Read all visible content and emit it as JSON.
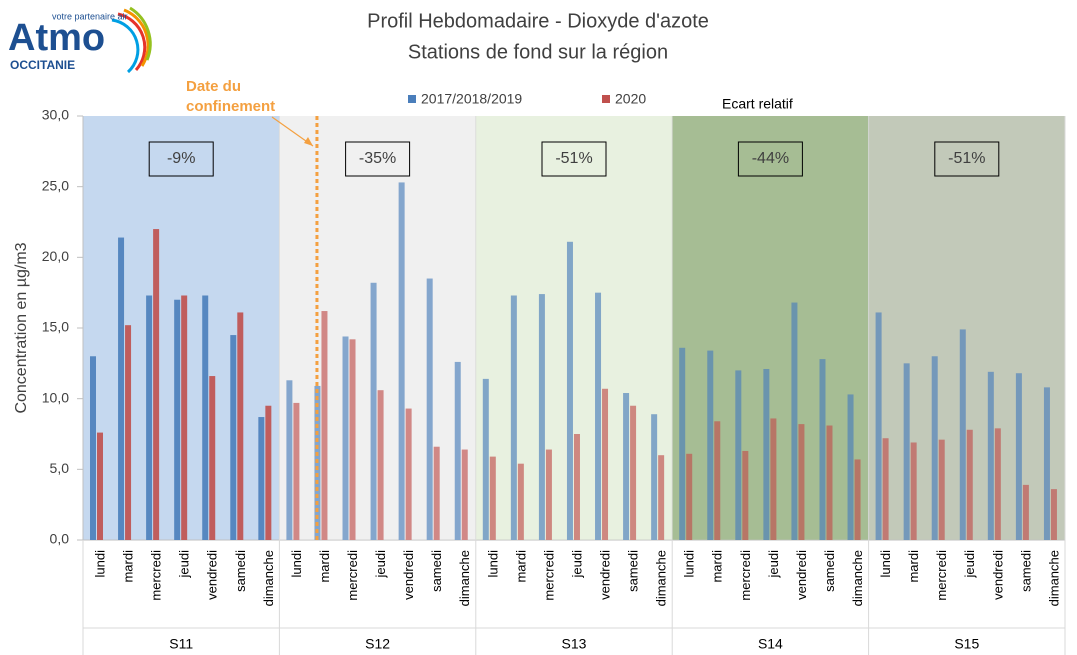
{
  "logo": {
    "name": "Atmo",
    "tagline": "votre partenaire air",
    "region": "OCCITANIE"
  },
  "chart_data": {
    "type": "bar",
    "title": [
      "Profil Hebdomadaire - Dioxyde d'azote",
      "Stations de fond sur la région"
    ],
    "y_label": "Concentration en µg/m3",
    "annotation": [
      "Date du",
      "confinement"
    ],
    "change_label": "Ecart relatif",
    "groups": [
      {
        "name": "S11",
        "change": "-9%",
        "color": "#c6d9f0",
        "categories": [
          "lundi",
          "mardi",
          "mercredi",
          "jeudi",
          "vendredi",
          "samedi",
          "dimanche"
        ]
      },
      {
        "name": "S12",
        "change": "-35%",
        "color": "#f0f0f0",
        "categories": [
          "lundi",
          "mardi",
          "mercredi",
          "jeudi",
          "vendredi",
          "samedi",
          "dimanche"
        ]
      },
      {
        "name": "S13",
        "change": "-51%",
        "color": "#e8f2e0",
        "categories": [
          "lundi",
          "mardi",
          "mercredi",
          "jeudi",
          "vendredi",
          "samedi",
          "dimanche"
        ]
      },
      {
        "name": "S14",
        "change": "-44%",
        "color": "#a7bd94",
        "categories": [
          "lundi",
          "mardi",
          "mercredi",
          "jeudi",
          "vendredi",
          "samedi",
          "dimanche"
        ]
      },
      {
        "name": "S15",
        "change": "-51%",
        "color": "#c2c9b9",
        "categories": [
          "lundi",
          "mardi",
          "mercredi",
          "jeudi",
          "vendredi",
          "samedi",
          "dimanche"
        ]
      }
    ],
    "series": [
      {
        "name": "2017/2018/2019",
        "color": "#4a7ebb",
        "values": [
          13.0,
          21.4,
          17.3,
          17.0,
          17.3,
          14.5,
          8.7,
          11.3,
          10.9,
          14.4,
          18.2,
          25.3,
          18.5,
          12.6,
          11.4,
          17.3,
          17.4,
          21.1,
          17.5,
          10.4,
          8.9,
          13.6,
          13.4,
          12.0,
          12.1,
          16.8,
          12.8,
          10.3,
          16.1,
          12.5,
          13.0,
          14.9,
          11.9,
          11.8,
          10.8
        ]
      },
      {
        "name": "2020",
        "color": "#c0504d",
        "values": [
          7.6,
          15.2,
          22.0,
          17.3,
          11.6,
          16.1,
          9.5,
          9.7,
          16.2,
          14.2,
          10.6,
          9.3,
          6.6,
          6.4,
          5.9,
          5.4,
          6.4,
          7.5,
          10.7,
          9.5,
          6.0,
          6.1,
          8.4,
          6.3,
          8.6,
          8.2,
          8.1,
          5.7,
          7.2,
          6.9,
          7.1,
          7.8,
          7.9,
          3.9,
          3.6
        ]
      }
    ],
    "ylim": [
      0,
      30
    ],
    "yticks": [
      {
        "value": 0,
        "label": "0,0"
      },
      {
        "value": 5,
        "label": "5,0"
      },
      {
        "value": 10,
        "label": "10,0"
      },
      {
        "value": 15,
        "label": "15,0"
      },
      {
        "value": 20,
        "label": "20,0"
      },
      {
        "value": 25,
        "label": "25,0"
      },
      {
        "value": 30,
        "label": "30,0"
      }
    ],
    "grid": false
  }
}
